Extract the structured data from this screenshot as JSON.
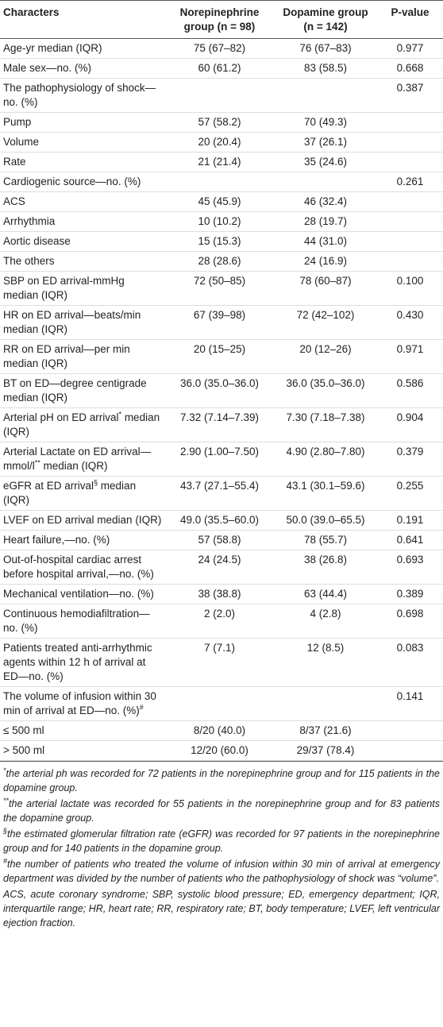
{
  "table": {
    "header": [
      "Characters",
      "Norepinephrine group (n = 98)",
      "Dopamine group (n = 142)",
      "P-value"
    ],
    "rows": [
      [
        "Age-yr median (IQR)",
        "75 (67–82)",
        "76 (67–83)",
        "0.977"
      ],
      [
        "Male sex—no. (%)",
        "60 (61.2)",
        "83 (58.5)",
        "0.668"
      ],
      [
        "The pathophysiology of shock—no. (%)",
        null,
        null,
        "0.387"
      ],
      [
        "Pump",
        "57 (58.2)",
        "70 (49.3)",
        null
      ],
      [
        "Volume",
        "20 (20.4)",
        "37 (26.1)",
        null
      ],
      [
        "Rate",
        "21 (21.4)",
        "35 (24.6)",
        null
      ],
      [
        "Cardiogenic source—no. (%)",
        null,
        null,
        "0.261"
      ],
      [
        "ACS",
        "45 (45.9)",
        "46 (32.4)",
        null
      ],
      [
        "Arrhythmia",
        "10 (10.2)",
        "28 (19.7)",
        null
      ],
      [
        "Aortic disease",
        "15 (15.3)",
        "44 (31.0)",
        null
      ],
      [
        "The others",
        "28 (28.6)",
        "24 (16.9)",
        null
      ],
      [
        "SBP on ED arrival-mmHg median (IQR)",
        "72 (50–85)",
        "78 (60–87)",
        "0.100"
      ],
      [
        "HR on ED arrival—beats/min median (IQR)",
        "67 (39–98)",
        "72 (42–102)",
        "0.430"
      ],
      [
        "RR on ED arrival—per min median (IQR)",
        "20 (15–25)",
        "20 (12–26)",
        "0.971"
      ],
      [
        "BT on ED—degree centigrade median (IQR)",
        "36.0 (35.0–36.0)",
        "36.0 (35.0–36.0)",
        "0.586"
      ],
      [
        {
          "text": "Arterial pH on ED arrival",
          "mark": "*",
          "rest": " median (IQR)"
        },
        "7.32 (7.14–7.39)",
        "7.30 (7.18–7.38)",
        "0.904"
      ],
      [
        {
          "text": "Arterial Lactate on ED arrival—mmol/l",
          "mark": "**",
          "rest": " median (IQR)"
        },
        "2.90 (1.00–7.50)",
        "4.90 (2.80–7.80)",
        "0.379"
      ],
      [
        {
          "text": "eGFR at ED arrival",
          "mark": "§",
          "rest": " median (IQR)"
        },
        "43.7 (27.1–55.4)",
        "43.1 (30.1–59.6)",
        "0.255"
      ],
      [
        "LVEF on ED arrival median (IQR)",
        "49.0 (35.5–60.0)",
        "50.0 (39.0–65.5)",
        "0.191"
      ],
      [
        "Heart failure,—no. (%)",
        "57 (58.8)",
        "78 (55.7)",
        "0.641"
      ],
      [
        "Out-of-hospital cardiac arrest before hospital arrival,—no. (%)",
        "24 (24.5)",
        "38 (26.8)",
        "0.693"
      ],
      [
        "Mechanical ventilation—no. (%)",
        "38 (38.8)",
        "63 (44.4)",
        "0.389"
      ],
      [
        "Continuous hemodiafiltration—no. (%)",
        "2 (2.0)",
        "4 (2.8)",
        "0.698"
      ],
      [
        "Patients treated anti-arrhythmic agents within 12 h of arrival at ED—no. (%)",
        "7 (7.1)",
        "12 (8.5)",
        "0.083"
      ],
      [
        {
          "text": "The volume of infusion within 30 min of arrival at ED—no. (%)",
          "mark": "#"
        },
        null,
        null,
        "0.141"
      ],
      [
        "≤ 500 ml",
        "8/20 (40.0)",
        "8/37 (21.6)",
        null
      ],
      [
        "> 500 ml",
        "12/20 (60.0)",
        "29/37 (78.4)",
        null
      ]
    ]
  },
  "footnotes": [
    {
      "mark": "*",
      "text": "the arterial ph was recorded for 72 patients in the norepinephrine group and for 115 patients in the dopamine group."
    },
    {
      "mark": "**",
      "text": "the arterial lactate was recorded for 55 patients in the norepinephrine group and for 83 patients the dopamine group."
    },
    {
      "mark": "§",
      "text": "the estimated glomerular filtration rate (eGFR) was recorded for 97 patients in the norepinephrine group and for 140 patients in the dopamine group."
    },
    {
      "mark": "#",
      "text": "the number of patients who treated the volume of infusion within 30 min of arrival at emergency department was divided by the number of patients who the pathophysiology of shock was “volume”."
    },
    {
      "text": "ACS, acute coronary syndrome; SBP, systolic blood pressure; ED, emergency department; IQR, interquartile range; HR, heart rate; RR, respiratory rate; BT, body temperature; LVEF, left ventricular ejection fraction."
    }
  ]
}
